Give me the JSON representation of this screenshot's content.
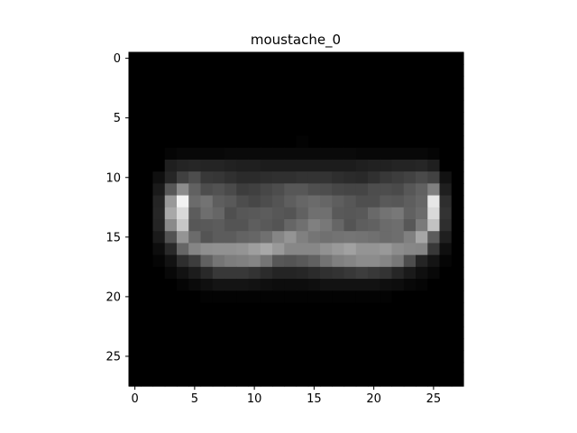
{
  "chart_data": {
    "type": "heatmap",
    "title": "moustache_0",
    "colormap": "gray",
    "value_range": [
      0,
      1
    ],
    "rows": 28,
    "cols": 28,
    "x_ticks": [
      0,
      5,
      10,
      15,
      20,
      25
    ],
    "y_ticks": [
      0,
      5,
      10,
      15,
      20,
      25
    ],
    "xlim": [
      -0.5,
      27.5
    ],
    "ylim": [
      27.5,
      -0.5
    ],
    "grid": false,
    "values": [
      [
        0,
        0,
        0,
        0,
        0,
        0,
        0,
        0,
        0,
        0,
        0,
        0,
        0,
        0,
        0,
        0,
        0,
        0,
        0,
        0,
        0,
        0,
        0,
        0,
        0,
        0,
        0,
        0
      ],
      [
        0,
        0,
        0,
        0,
        0,
        0,
        0,
        0,
        0,
        0,
        0,
        0,
        0,
        0,
        0,
        0,
        0,
        0,
        0,
        0,
        0,
        0,
        0,
        0,
        0,
        0,
        0,
        0
      ],
      [
        0,
        0,
        0,
        0,
        0,
        0,
        0,
        0,
        0,
        0,
        0,
        0,
        0,
        0,
        0,
        0,
        0,
        0,
        0,
        0,
        0,
        0,
        0,
        0,
        0,
        0,
        0,
        0
      ],
      [
        0,
        0,
        0,
        0,
        0,
        0,
        0,
        0,
        0,
        0,
        0,
        0,
        0,
        0,
        0,
        0,
        0,
        0,
        0,
        0,
        0,
        0,
        0,
        0,
        0,
        0,
        0,
        0
      ],
      [
        0,
        0,
        0,
        0,
        0,
        0,
        0,
        0,
        0,
        0,
        0,
        0,
        0,
        0,
        0,
        0,
        0,
        0,
        0,
        0,
        0,
        0,
        0,
        0,
        0,
        0,
        0,
        0
      ],
      [
        0,
        0,
        0,
        0,
        0,
        0,
        0,
        0,
        0,
        0,
        0,
        0,
        0,
        0,
        0,
        0,
        0,
        0,
        0,
        0,
        0,
        0,
        0,
        0,
        0,
        0,
        0,
        0
      ],
      [
        0,
        0,
        0,
        0,
        0,
        0,
        0,
        0,
        0,
        0,
        0,
        0,
        0,
        0,
        0,
        0,
        0,
        0,
        0,
        0,
        0,
        0,
        0,
        0,
        0,
        0,
        0,
        0
      ],
      [
        0,
        0,
        0,
        0,
        0,
        0,
        0,
        0,
        0,
        0,
        0,
        0,
        0,
        0,
        0.01,
        0,
        0,
        0,
        0,
        0,
        0,
        0,
        0,
        0,
        0,
        0,
        0,
        0
      ],
      [
        0,
        0,
        0,
        0.02,
        0.03,
        0.03,
        0.03,
        0.03,
        0.04,
        0.04,
        0.04,
        0.04,
        0.04,
        0.04,
        0.04,
        0.04,
        0.04,
        0.04,
        0.04,
        0.03,
        0.03,
        0.03,
        0.03,
        0.03,
        0.03,
        0.02,
        0,
        0
      ],
      [
        0,
        0,
        0,
        0.12,
        0.14,
        0.15,
        0.14,
        0.14,
        0.13,
        0.12,
        0.12,
        0.11,
        0.11,
        0.11,
        0.11,
        0.11,
        0.11,
        0.11,
        0.11,
        0.12,
        0.13,
        0.13,
        0.14,
        0.14,
        0.15,
        0.12,
        0,
        0
      ],
      [
        0,
        0,
        0.06,
        0.15,
        0.25,
        0.3,
        0.22,
        0.21,
        0.19,
        0.17,
        0.17,
        0.18,
        0.19,
        0.19,
        0.2,
        0.2,
        0.2,
        0.18,
        0.17,
        0.16,
        0.19,
        0.22,
        0.24,
        0.26,
        0.29,
        0.26,
        0.07,
        0
      ],
      [
        0,
        0,
        0.1,
        0.34,
        0.55,
        0.38,
        0.3,
        0.32,
        0.29,
        0.24,
        0.25,
        0.28,
        0.3,
        0.34,
        0.34,
        0.31,
        0.3,
        0.28,
        0.27,
        0.27,
        0.3,
        0.3,
        0.29,
        0.34,
        0.38,
        0.5,
        0.12,
        0
      ],
      [
        0,
        0,
        0.14,
        0.6,
        0.95,
        0.42,
        0.45,
        0.37,
        0.35,
        0.3,
        0.28,
        0.3,
        0.33,
        0.37,
        0.4,
        0.42,
        0.4,
        0.37,
        0.34,
        0.31,
        0.31,
        0.35,
        0.34,
        0.37,
        0.4,
        0.9,
        0.18,
        0
      ],
      [
        0,
        0,
        0.15,
        0.66,
        0.85,
        0.36,
        0.43,
        0.4,
        0.31,
        0.34,
        0.35,
        0.36,
        0.34,
        0.33,
        0.38,
        0.44,
        0.44,
        0.35,
        0.34,
        0.35,
        0.41,
        0.45,
        0.47,
        0.38,
        0.42,
        0.85,
        0.2,
        0
      ],
      [
        0,
        0,
        0.14,
        0.54,
        0.78,
        0.34,
        0.35,
        0.36,
        0.33,
        0.33,
        0.37,
        0.35,
        0.33,
        0.4,
        0.44,
        0.5,
        0.47,
        0.4,
        0.33,
        0.37,
        0.38,
        0.42,
        0.43,
        0.34,
        0.48,
        0.76,
        0.18,
        0
      ],
      [
        0,
        0,
        0.1,
        0.32,
        0.58,
        0.42,
        0.33,
        0.36,
        0.36,
        0.39,
        0.4,
        0.44,
        0.52,
        0.58,
        0.5,
        0.46,
        0.44,
        0.45,
        0.46,
        0.45,
        0.44,
        0.42,
        0.43,
        0.5,
        0.65,
        0.36,
        0.12,
        0
      ],
      [
        0,
        0,
        0.05,
        0.16,
        0.4,
        0.52,
        0.56,
        0.57,
        0.57,
        0.58,
        0.62,
        0.66,
        0.6,
        0.53,
        0.53,
        0.53,
        0.57,
        0.6,
        0.63,
        0.58,
        0.58,
        0.6,
        0.55,
        0.53,
        0.52,
        0.22,
        0.06,
        0
      ],
      [
        0,
        0,
        0.02,
        0.07,
        0.18,
        0.24,
        0.38,
        0.46,
        0.49,
        0.5,
        0.52,
        0.46,
        0.34,
        0.33,
        0.35,
        0.38,
        0.45,
        0.5,
        0.52,
        0.55,
        0.55,
        0.52,
        0.47,
        0.3,
        0.14,
        0.08,
        0.02,
        0
      ],
      [
        0,
        0,
        0,
        0.03,
        0.07,
        0.11,
        0.16,
        0.22,
        0.22,
        0.22,
        0.2,
        0.17,
        0.14,
        0.14,
        0.15,
        0.17,
        0.19,
        0.2,
        0.22,
        0.24,
        0.22,
        0.2,
        0.15,
        0.1,
        0.06,
        0.03,
        0,
        0
      ],
      [
        0,
        0,
        0,
        0,
        0.02,
        0.04,
        0.06,
        0.08,
        0.08,
        0.08,
        0.07,
        0.06,
        0.05,
        0.05,
        0.05,
        0.06,
        0.07,
        0.07,
        0.07,
        0.07,
        0.07,
        0.06,
        0.05,
        0.03,
        0.02,
        0,
        0,
        0
      ],
      [
        0,
        0,
        0,
        0,
        0,
        0,
        0.01,
        0.01,
        0.01,
        0.01,
        0.01,
        0.01,
        0.01,
        0.01,
        0.01,
        0.01,
        0.01,
        0.01,
        0.01,
        0.01,
        0.01,
        0.01,
        0,
        0,
        0,
        0,
        0,
        0
      ],
      [
        0,
        0,
        0,
        0,
        0,
        0,
        0,
        0,
        0,
        0,
        0,
        0,
        0,
        0,
        0,
        0,
        0,
        0,
        0,
        0,
        0,
        0,
        0,
        0,
        0,
        0,
        0,
        0
      ],
      [
        0,
        0,
        0,
        0,
        0,
        0,
        0,
        0,
        0,
        0,
        0,
        0,
        0,
        0,
        0,
        0,
        0,
        0,
        0,
        0,
        0,
        0,
        0,
        0,
        0,
        0,
        0,
        0
      ],
      [
        0,
        0,
        0,
        0,
        0,
        0,
        0,
        0,
        0,
        0,
        0,
        0,
        0,
        0,
        0,
        0,
        0,
        0,
        0,
        0,
        0,
        0,
        0,
        0,
        0,
        0,
        0,
        0
      ],
      [
        0,
        0,
        0,
        0,
        0,
        0,
        0,
        0,
        0,
        0,
        0,
        0,
        0,
        0,
        0,
        0,
        0,
        0,
        0,
        0,
        0,
        0,
        0,
        0,
        0,
        0,
        0,
        0
      ],
      [
        0,
        0,
        0,
        0,
        0,
        0,
        0,
        0,
        0,
        0,
        0,
        0,
        0,
        0,
        0,
        0,
        0,
        0,
        0,
        0,
        0,
        0,
        0,
        0,
        0,
        0,
        0,
        0
      ],
      [
        0,
        0,
        0,
        0,
        0,
        0,
        0,
        0,
        0,
        0,
        0,
        0,
        0,
        0,
        0,
        0,
        0,
        0,
        0,
        0,
        0,
        0,
        0,
        0,
        0,
        0,
        0,
        0
      ],
      [
        0,
        0,
        0,
        0,
        0,
        0,
        0,
        0,
        0,
        0,
        0,
        0,
        0,
        0,
        0,
        0,
        0,
        0,
        0,
        0,
        0,
        0,
        0,
        0,
        0,
        0,
        0,
        0
      ]
    ]
  }
}
